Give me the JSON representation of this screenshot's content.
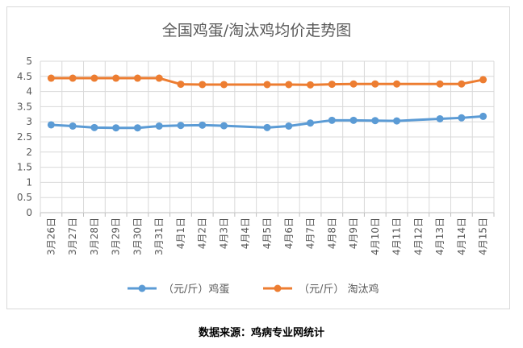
{
  "chart_data": {
    "type": "line",
    "title": "全国鸡蛋/淘汰鸡均价走势图",
    "xlabel": "",
    "ylabel": "",
    "ylim": [
      0,
      5
    ],
    "yticks": [
      "0",
      "0.5",
      "1",
      "1.5",
      "2",
      "2.5",
      "3",
      "3.5",
      "4",
      "4.5",
      "5"
    ],
    "grid": true,
    "legend_position": "bottom",
    "categories": [
      "3月26日",
      "3月27日",
      "3月28日",
      "3月29日",
      "3月30日",
      "3月31日",
      "4月1日",
      "4月2日",
      "4月3日",
      "4月4日",
      "4月5日",
      "4月6日",
      "4月7日",
      "4月8日",
      "4月9日",
      "4月10日",
      "4月11日",
      "4月12日",
      "4月13日",
      "4月14日",
      "4月15日"
    ],
    "series": [
      {
        "name": "（元/斤）鸡蛋",
        "color": "#5b9bd5",
        "values": [
          2.9,
          2.86,
          2.81,
          2.8,
          2.8,
          2.86,
          2.88,
          2.89,
          2.87,
          null,
          2.81,
          2.86,
          2.96,
          3.05,
          3.05,
          3.04,
          3.03,
          null,
          3.1,
          3.13,
          3.18
        ]
      },
      {
        "name": "（元/斤） 淘汰鸡",
        "color": "#ed7d31",
        "values": [
          4.44,
          4.44,
          4.44,
          4.44,
          4.44,
          4.44,
          4.24,
          4.23,
          4.23,
          null,
          4.23,
          4.23,
          4.22,
          4.24,
          4.25,
          4.25,
          4.25,
          null,
          4.25,
          4.25,
          4.39
        ]
      }
    ]
  },
  "caption": "数据来源：鸡病专业网统计"
}
